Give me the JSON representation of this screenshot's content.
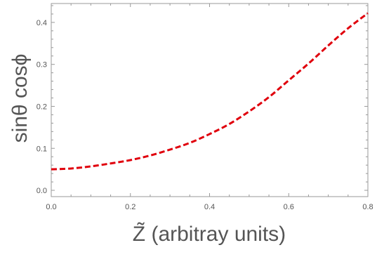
{
  "chart_data": {
    "type": "line",
    "title": "",
    "xlabel": "Z̃ (arbitray units)",
    "ylabel": "sinθ cosϕ",
    "xlim": [
      0.0,
      0.8
    ],
    "ylim": [
      -0.015,
      0.445
    ],
    "x_ticks": [
      "0.0",
      "0.2",
      "0.4",
      "0.6",
      "0.8"
    ],
    "y_ticks": [
      "0.0",
      "0.1",
      "0.2",
      "0.3",
      "0.4"
    ],
    "grid": false,
    "legend": "none",
    "series": [
      {
        "color": "#e0000c",
        "style": "dashed",
        "x": [
          0.0,
          0.05,
          0.1,
          0.15,
          0.2,
          0.25,
          0.3,
          0.35,
          0.4,
          0.45,
          0.5,
          0.55,
          0.6,
          0.65,
          0.7,
          0.75,
          0.8
        ],
        "y": [
          0.05,
          0.052,
          0.057,
          0.064,
          0.072,
          0.083,
          0.097,
          0.113,
          0.134,
          0.158,
          0.188,
          0.222,
          0.262,
          0.302,
          0.345,
          0.386,
          0.422
        ]
      }
    ]
  }
}
